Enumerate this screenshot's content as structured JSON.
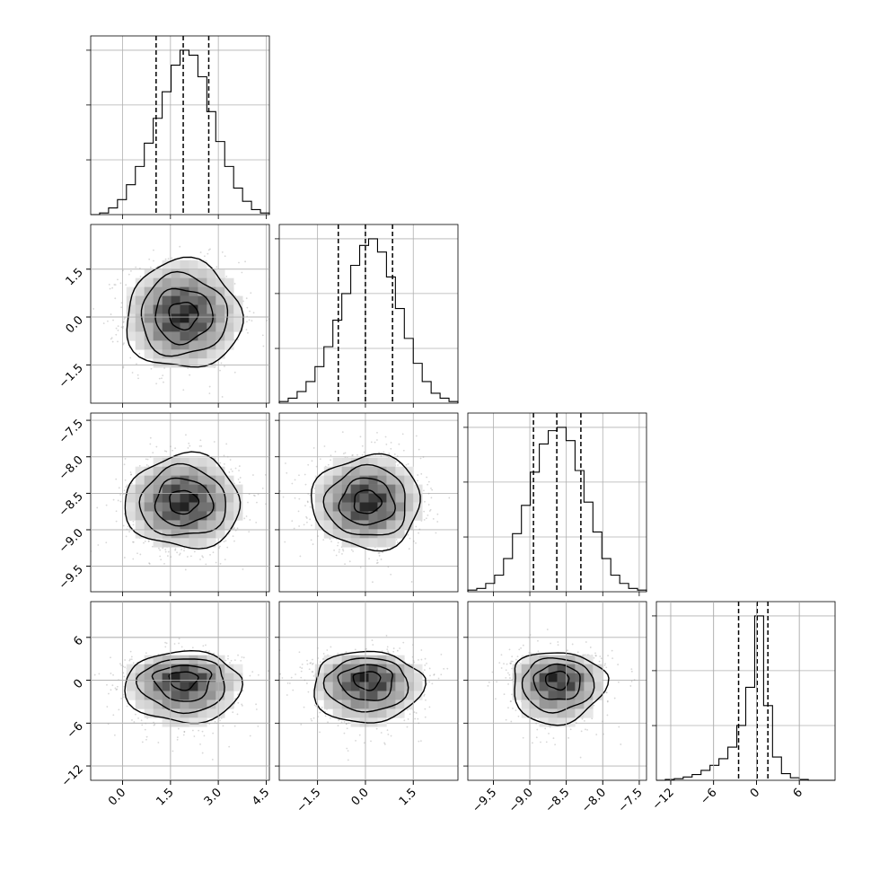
{
  "chart_data": {
    "type": "corner",
    "parameters": [
      {
        "range": [
          -1.0,
          4.6
        ],
        "ticks": [
          {
            "value": 0.0,
            "label": "0.0"
          },
          {
            "value": 1.5,
            "label": "1.5"
          },
          {
            "value": 3.0,
            "label": "3.0"
          },
          {
            "value": 4.5,
            "label": "4.5"
          }
        ],
        "quantiles": [
          1.05,
          1.9,
          2.7
        ],
        "histogram": {
          "edges": [
            -1.0,
            -0.72,
            -0.44,
            -0.16,
            0.12,
            0.4,
            0.68,
            0.96,
            1.24,
            1.52,
            1.8,
            2.08,
            2.36,
            2.64,
            2.92,
            3.2,
            3.48,
            3.76,
            4.04,
            4.32,
            4.6
          ],
          "counts": [
            0,
            0.01,
            0.04,
            0.09,
            0.18,
            0.29,
            0.43,
            0.58,
            0.74,
            0.9,
            0.99,
            0.96,
            0.83,
            0.62,
            0.44,
            0.29,
            0.16,
            0.08,
            0.03,
            0.01
          ]
        },
        "hist_yticks": [
          0.333,
          0.667,
          1.0
        ]
      },
      {
        "range": [
          -2.7,
          2.9
        ],
        "ticks": [
          {
            "value": -1.5,
            "label": "−1.5"
          },
          {
            "value": 0.0,
            "label": "0.0"
          },
          {
            "value": 1.5,
            "label": "1.5"
          }
        ],
        "quantiles": [
          -0.85,
          0.0,
          0.85
        ],
        "histogram": {
          "edges": [
            -2.7,
            -2.42,
            -2.14,
            -1.86,
            -1.58,
            -1.3,
            -1.02,
            -0.74,
            -0.46,
            -0.18,
            0.1,
            0.38,
            0.66,
            0.94,
            1.22,
            1.5,
            1.78,
            2.06,
            2.34,
            2.62,
            2.9
          ],
          "counts": [
            0.01,
            0.03,
            0.07,
            0.13,
            0.22,
            0.34,
            0.5,
            0.66,
            0.83,
            0.95,
            0.99,
            0.91,
            0.76,
            0.57,
            0.39,
            0.24,
            0.13,
            0.06,
            0.03,
            0.01
          ]
        },
        "hist_yticks": [
          0.333,
          0.667,
          1.0
        ]
      },
      {
        "range": [
          -9.85,
          -7.4
        ],
        "ticks": [
          {
            "value": -9.5,
            "label": "−9.5"
          },
          {
            "value": -9.0,
            "label": "−9.0"
          },
          {
            "value": -8.5,
            "label": "−8.5"
          },
          {
            "value": -8.0,
            "label": "−8.0"
          },
          {
            "value": -7.5,
            "label": "−7.5"
          }
        ],
        "quantiles": [
          -8.95,
          -8.63,
          -8.3
        ],
        "histogram": {
          "edges": [
            -9.85,
            -9.7275,
            -9.605,
            -9.4825,
            -9.36,
            -9.2375,
            -9.115,
            -8.9925,
            -8.87,
            -8.7475,
            -8.625,
            -8.5025,
            -8.38,
            -8.2575,
            -8.135,
            -8.0125,
            -7.89,
            -7.7675,
            -7.645,
            -7.5225,
            -7.4
          ],
          "counts": [
            0.01,
            0.02,
            0.05,
            0.1,
            0.2,
            0.35,
            0.52,
            0.72,
            0.89,
            0.97,
            0.99,
            0.91,
            0.73,
            0.54,
            0.36,
            0.2,
            0.1,
            0.05,
            0.02,
            0.01
          ]
        },
        "hist_yticks": [
          0.333,
          0.667,
          1.0
        ]
      },
      {
        "range": [
          -14.0,
          11.0
        ],
        "ticks": [
          {
            "value": -12,
            "label": "−12"
          },
          {
            "value": -6,
            "label": "−6"
          },
          {
            "value": 0,
            "label": "0"
          },
          {
            "value": 6,
            "label": "6"
          }
        ],
        "quantiles": [
          -2.5,
          0.1,
          1.6
        ],
        "histogram": {
          "edges": [
            -14.0,
            -12.75,
            -11.5,
            -10.25,
            -9.0,
            -7.75,
            -6.5,
            -5.25,
            -4.0,
            -2.75,
            -1.5,
            -0.25,
            1.0,
            2.25,
            3.5,
            4.75,
            6.0,
            7.25,
            8.5,
            9.75,
            11.0
          ],
          "counts": [
            0,
            0.005,
            0.01,
            0.02,
            0.035,
            0.06,
            0.09,
            0.13,
            0.2,
            0.33,
            0.56,
            0.99,
            0.45,
            0.14,
            0.04,
            0.015,
            0.005,
            0,
            0,
            0
          ]
        },
        "hist_yticks": [
          0.333,
          0.667,
          1.0
        ]
      }
    ],
    "density_panels": [
      {
        "x": 0,
        "y": 1,
        "center": [
          1.9,
          0.05
        ],
        "sigma": [
          0.9,
          0.85
        ]
      },
      {
        "x": 0,
        "y": 2,
        "center": [
          1.9,
          -8.62
        ],
        "sigma": [
          0.9,
          0.32
        ]
      },
      {
        "x": 1,
        "y": 2,
        "center": [
          0.05,
          -8.62
        ],
        "sigma": [
          0.85,
          0.32
        ]
      },
      {
        "x": 0,
        "y": 3,
        "center": [
          1.9,
          0.3
        ],
        "sigma": [
          0.9,
          2.4
        ]
      },
      {
        "x": 1,
        "y": 3,
        "center": [
          0.05,
          0.3
        ],
        "sigma": [
          0.85,
          2.4
        ]
      },
      {
        "x": 2,
        "y": 3,
        "center": [
          -8.62,
          0.3
        ],
        "sigma": [
          0.32,
          2.4
        ]
      }
    ],
    "contour_levels": [
      0.5,
      1.0,
      1.5,
      2.0
    ],
    "grid": true
  }
}
